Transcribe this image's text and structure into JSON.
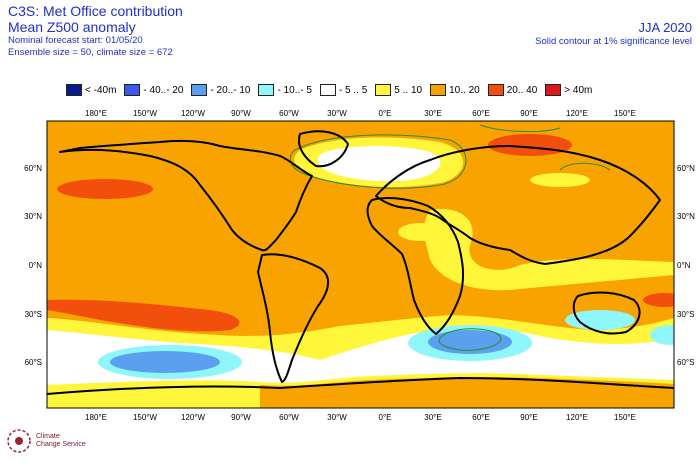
{
  "header": {
    "title_line1": "C3S: Met Office contribution",
    "title_line2": "Mean Z500 anomaly",
    "start": "Nominal forecast start: 01/05/20",
    "ensemble": "Ensemble size = 50, climate size = 672",
    "season": "JJA 2020",
    "note": "Solid contour at 1% significance level"
  },
  "legend": [
    {
      "label": "< -40m",
      "color": "#0a1a8c"
    },
    {
      "label": "- 40..- 20",
      "color": "#3f57e8"
    },
    {
      "label": "- 20..- 10",
      "color": "#5aa0ee"
    },
    {
      "label": "- 10..- 5",
      "color": "#8ff6fb"
    },
    {
      "label": "- 5 .. 5",
      "color": "#ffffff"
    },
    {
      "label": "5 .. 10",
      "color": "#fff53a"
    },
    {
      "label": "10.. 20",
      "color": "#f9a300"
    },
    {
      "label": "20.. 40",
      "color": "#f24f0c"
    },
    {
      "label": "> 40m",
      "color": "#d81a1a"
    }
  ],
  "axes": {
    "lon_top": [
      "180°E",
      "150°W",
      "120°W",
      "90°W",
      "60°W",
      "30°W",
      "0°E",
      "30°E",
      "60°E",
      "90°E",
      "120°E",
      "150°E"
    ],
    "lon_bottom": [
      "180°E",
      "150°W",
      "120°W",
      "90°W",
      "60°W",
      "30°W",
      "0°E",
      "30°E",
      "60°E",
      "90°E",
      "120°E",
      "150°E"
    ],
    "lat_left": [
      "60°N",
      "30°N",
      "0°N",
      "30°S",
      "60°S"
    ],
    "lat_right": [
      "60°N",
      "30°N",
      "0°N",
      "30°S",
      "60°S"
    ]
  },
  "logo": {
    "line1": "Climate",
    "line2": "Change Service"
  }
}
